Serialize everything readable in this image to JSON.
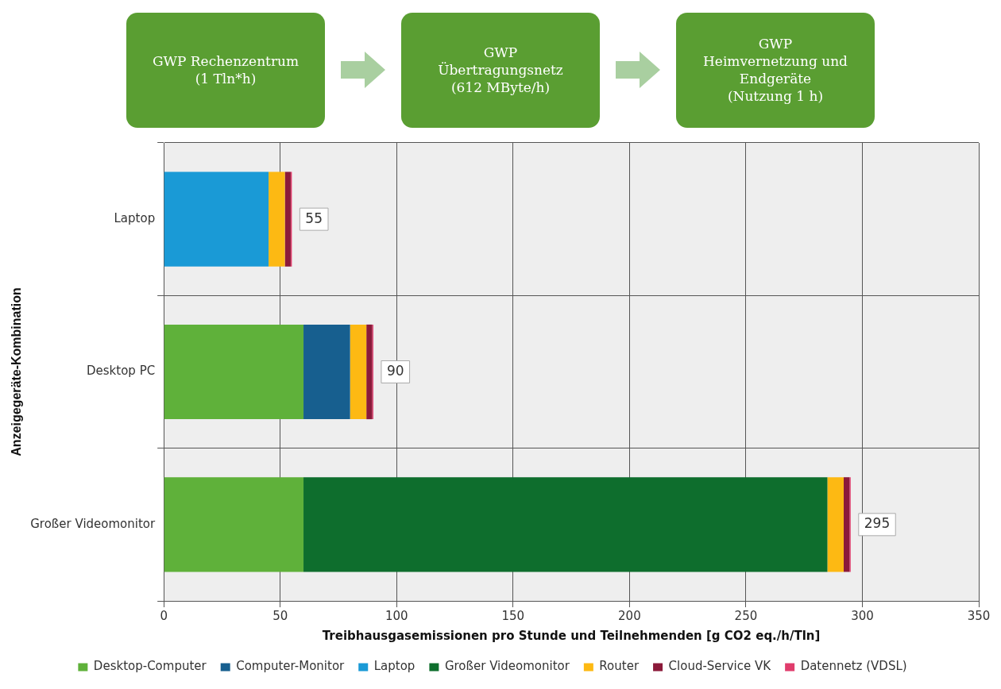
{
  "chart_data": {
    "type": "bar",
    "orientation": "horizontal",
    "stacked": true,
    "annotations": [
      "GWP Rechenzentrum\n(1 Tln*h)",
      "GWP\nÜbertragungsnetz\n(612 MByte/h)",
      "GWP\nHeimvernetzung und\nEndgeräte\n(Nutzung 1 h)"
    ],
    "categories": [
      "Laptop",
      "Desktop PC",
      "Großer Videomonitor"
    ],
    "series": [
      {
        "name": "Desktop-Computer",
        "color": "#5fb13a",
        "values": [
          null,
          60,
          60
        ]
      },
      {
        "name": "Computer-Monitor",
        "color": "#175f8f",
        "values": [
          null,
          20,
          null
        ]
      },
      {
        "name": "Laptop",
        "color": "#1a9ad6",
        "values": [
          45,
          null,
          null
        ]
      },
      {
        "name": "Großer Videomonitor",
        "color": "#0e6e2d",
        "values": [
          null,
          null,
          225
        ]
      },
      {
        "name": "Router",
        "color": "#fdb913",
        "values": [
          7,
          7,
          7
        ]
      },
      {
        "name": "Cloud-Service VK",
        "color": "#8b1a3a",
        "values": [
          2.5,
          2.5,
          2.5
        ]
      },
      {
        "name": "Datennetz (VDSL)",
        "color": "#e03c6c",
        "values": [
          0.5,
          0.5,
          0.5
        ]
      }
    ],
    "totals": [
      "55",
      "90",
      "295"
    ],
    "xlabel": "Treibhausgasemissionen pro Stunde und Teilnehmenden [g CO2 eq./h/Tln]",
    "ylabel": "Anzeigegeräte-Kombination",
    "xlim": [
      0,
      350
    ],
    "xticks": [
      0,
      50,
      100,
      150,
      200,
      250,
      300,
      350
    ],
    "grid": true,
    "legend": "bottom"
  }
}
